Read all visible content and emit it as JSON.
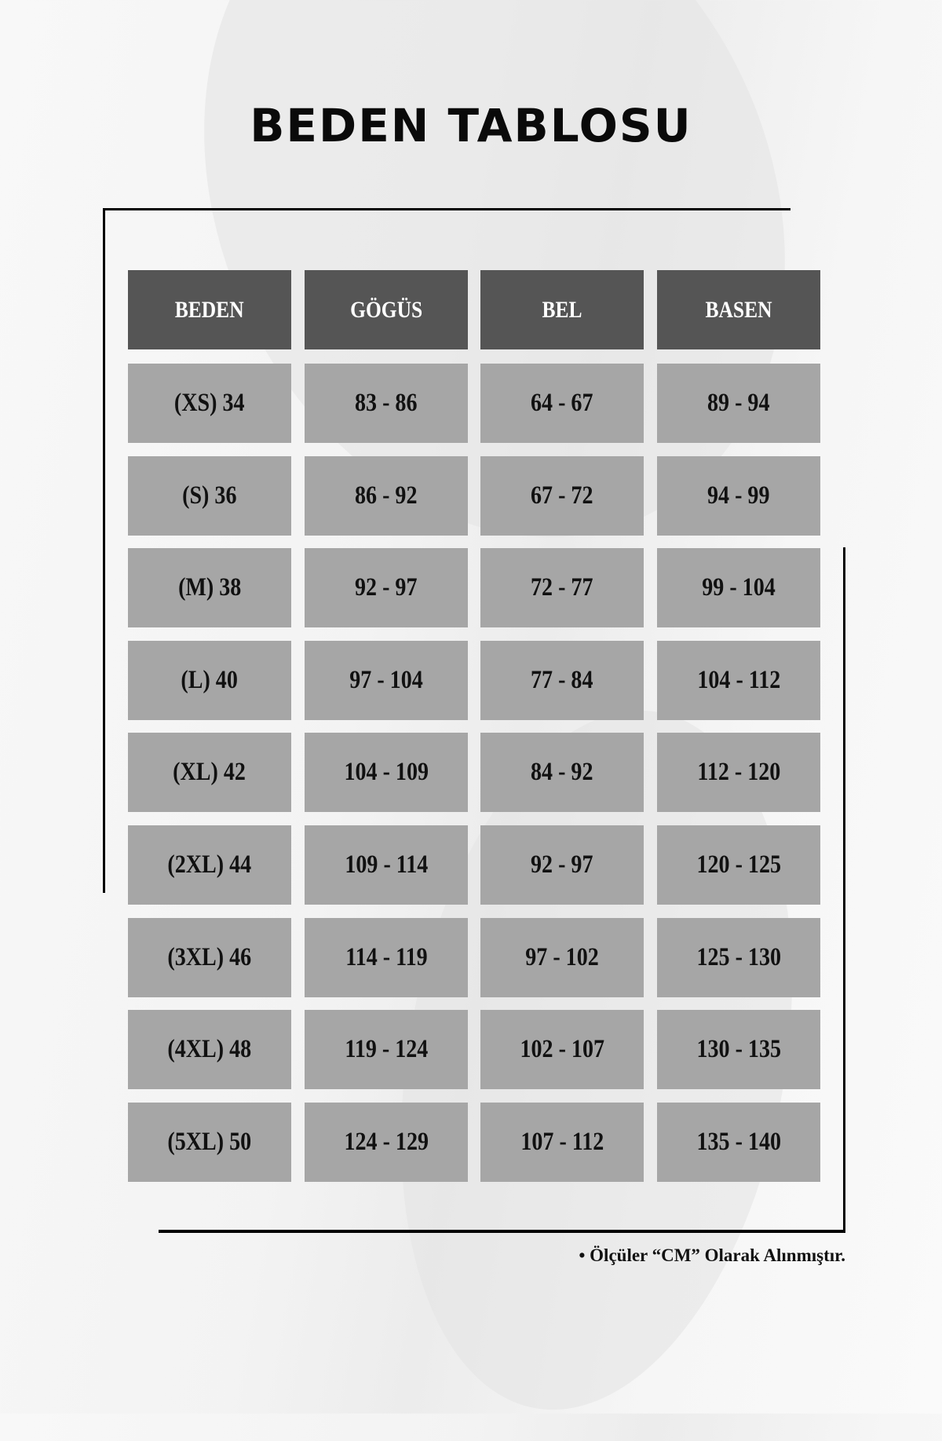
{
  "title": "BEDEN TABLOSU",
  "colors": {
    "header_bg": "#555555",
    "cell_bg": "#a6a6a6",
    "header_text": "#ffffff",
    "cell_text": "#111111"
  },
  "table": {
    "headers": [
      "BEDEN",
      "GÖGÜS",
      "BEL",
      "BASEN"
    ],
    "rows": [
      [
        "(XS) 34",
        "83 - 86",
        "64 - 67",
        "89 - 94"
      ],
      [
        "(S) 36",
        "86 - 92",
        "67 - 72",
        "94 - 99"
      ],
      [
        "(M) 38",
        "92 - 97",
        "72 - 77",
        "99 - 104"
      ],
      [
        "(L) 40",
        "97 - 104",
        "77 - 84",
        "104 - 112"
      ],
      [
        "(XL) 42",
        "104 - 109",
        "84 - 92",
        "112 - 120"
      ],
      [
        "(2XL) 44",
        "109 - 114",
        "92 - 97",
        "120 - 125"
      ],
      [
        "(3XL) 46",
        "114 - 119",
        "97 - 102",
        "125 - 130"
      ],
      [
        "(4XL) 48",
        "119 - 124",
        "102 - 107",
        "130 - 135"
      ],
      [
        "(5XL) 50",
        "124 - 129",
        "107 - 112",
        "135 - 140"
      ]
    ]
  },
  "note": "• Ölçüler “CM” Olarak Alınmıştır."
}
